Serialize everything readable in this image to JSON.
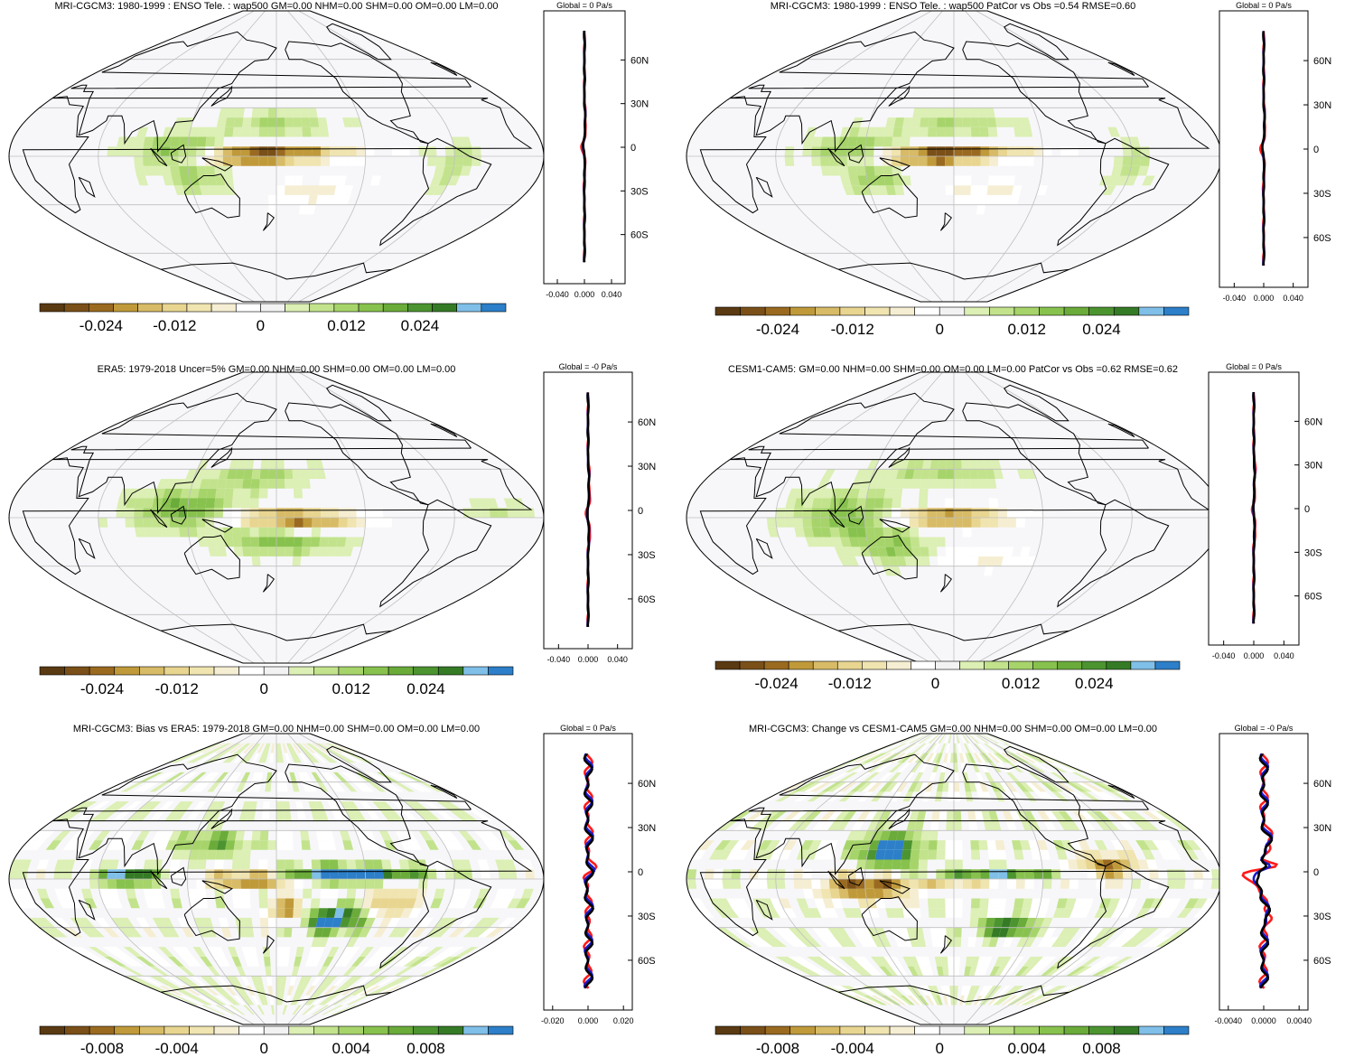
{
  "colors": {
    "ocean": "#f7f7fa",
    "grid": "#bfbfbf",
    "coast": "#000000",
    "zonal_model": "#ff1a1a",
    "zonal_ref": "#1a1acc",
    "zonal_diff": "#000000",
    "palette": [
      "#5a3a12",
      "#7a5018",
      "#9a6a20",
      "#c09a3a",
      "#d8bb66",
      "#e8d590",
      "#f0e4b0",
      "#f6eed2",
      "#ffffff",
      "#f2f2f2",
      "#dcefb4",
      "#c2e38c",
      "#a6d46a",
      "#88c24e",
      "#6aab3a",
      "#4c9430",
      "#357b26",
      "#7fbfe8",
      "#2c7fc8"
    ]
  },
  "chart_data": [
    {
      "type": "heatmap",
      "title": "MRI-CGCM3: 1980-1999 : ENSO Tele. : wap500 GM=0.00 NHM=0.00 SHM=0.00 OM=0.00 LM=0.00",
      "colorbar_ticks": [
        "-0.024",
        "-0.012",
        "0",
        "0.012",
        "0.024"
      ],
      "zonal_title": "Global = 0 Pa/s",
      "zonal_xticks": [
        "-0.040",
        "0.000",
        "0.040"
      ],
      "zonal_yticks": [
        "60N",
        "30N",
        "0",
        "30S",
        "60S"
      ],
      "zonal_xlim": [
        -0.06,
        0.06
      ],
      "variant": "model",
      "blobs": [
        {
          "lon": 160,
          "lat": 0,
          "rlon": 40,
          "rlat": 5,
          "v": -0.026
        },
        {
          "lon": 200,
          "lat": 2,
          "rlon": 40,
          "rlat": 4,
          "v": -0.012
        },
        {
          "lon": 115,
          "lat": 3,
          "rlon": 30,
          "rlat": 10,
          "v": 0.014
        },
        {
          "lon": 180,
          "lat": 20,
          "rlon": 40,
          "rlat": 8,
          "v": 0.008
        },
        {
          "lon": 205,
          "lat": -22,
          "rlon": 30,
          "rlat": 8,
          "v": -0.006
        },
        {
          "lon": 125,
          "lat": -15,
          "rlon": 20,
          "rlat": 8,
          "v": 0.009
        },
        {
          "lon": 300,
          "lat": -5,
          "rlon": 15,
          "rlat": 15,
          "v": 0.006
        }
      ]
    },
    {
      "type": "heatmap",
      "title": "MRI-CGCM3: 1980-1999 : ENSO Tele. : wap500 PatCor vs Obs =0.54 RMSE=0.60",
      "colorbar_ticks": [
        "-0.024",
        "-0.012",
        "0",
        "0.012",
        "0.024"
      ],
      "zonal_title": "Global = 0 Pa/s",
      "zonal_xticks": [
        "-0.040",
        "0.000",
        "0.040"
      ],
      "zonal_yticks": [
        "60N",
        "30N",
        "0",
        "30S",
        "60S"
      ],
      "zonal_xlim": [
        -0.06,
        0.06
      ],
      "variant": "model",
      "blobs": [
        {
          "lon": 160,
          "lat": 0,
          "rlon": 40,
          "rlat": 5,
          "v": -0.026
        },
        {
          "lon": 200,
          "lat": 2,
          "rlon": 40,
          "rlat": 4,
          "v": -0.012
        },
        {
          "lon": 115,
          "lat": 3,
          "rlon": 30,
          "rlat": 10,
          "v": 0.014
        },
        {
          "lon": 180,
          "lat": 20,
          "rlon": 40,
          "rlat": 8,
          "v": 0.008
        },
        {
          "lon": 205,
          "lat": -22,
          "rlon": 30,
          "rlat": 8,
          "v": -0.006
        },
        {
          "lon": 125,
          "lat": -15,
          "rlon": 20,
          "rlat": 8,
          "v": 0.009
        },
        {
          "lon": 300,
          "lat": -5,
          "rlon": 15,
          "rlat": 15,
          "v": 0.006
        }
      ]
    },
    {
      "type": "heatmap",
      "title": "ERA5: 1979-2018 Uncer=5% GM=0.00 NHM=0.00 SHM=0.00 OM=0.00 LM=0.00",
      "colorbar_ticks": [
        "-0.024",
        "-0.012",
        "0",
        "0.012",
        "0.024"
      ],
      "zonal_title": "Global = -0 Pa/s",
      "zonal_xticks": [
        "-0.040",
        "0.000",
        "0.040"
      ],
      "zonal_yticks": [
        "60N",
        "30N",
        "0",
        "30S",
        "60S"
      ],
      "zonal_xlim": [
        -0.06,
        0.06
      ],
      "variant": "obs",
      "blobs": [
        {
          "lon": 185,
          "lat": 0,
          "rlon": 45,
          "rlat": 5,
          "v": -0.022
        },
        {
          "lon": 120,
          "lat": 5,
          "rlon": 35,
          "rlat": 12,
          "v": 0.016
        },
        {
          "lon": 165,
          "lat": 25,
          "rlon": 35,
          "rlat": 8,
          "v": 0.009
        },
        {
          "lon": 185,
          "lat": -15,
          "rlon": 40,
          "rlat": 8,
          "v": 0.012
        },
        {
          "lon": 210,
          "lat": -5,
          "rlon": 30,
          "rlat": 4,
          "v": -0.008
        },
        {
          "lon": 330,
          "lat": 5,
          "rlon": 25,
          "rlat": 5,
          "v": 0.006
        }
      ]
    },
    {
      "type": "heatmap",
      "title": "CESM1-CAM5: GM=0.00 NHM=0.00 SHM=0.00 OM=0.00 LM=0.00 PatCor vs Obs =0.62 RMSE=0.62",
      "colorbar_ticks": [
        "-0.024",
        "-0.012",
        "0",
        "0.012",
        "0.024"
      ],
      "zonal_title": "Global = 0 Pa/s",
      "zonal_xticks": [
        "-0.040",
        "0.000",
        "0.040"
      ],
      "zonal_yticks": [
        "60N",
        "30N",
        "0",
        "30S",
        "60S"
      ],
      "zonal_xlim": [
        -0.06,
        0.06
      ],
      "variant": "model",
      "blobs": [
        {
          "lon": 175,
          "lat": 0,
          "rlon": 40,
          "rlat": 5,
          "v": -0.024
        },
        {
          "lon": 110,
          "lat": 0,
          "rlon": 35,
          "rlat": 15,
          "v": 0.014
        },
        {
          "lon": 170,
          "lat": 28,
          "rlon": 45,
          "rlat": 8,
          "v": 0.008
        },
        {
          "lon": 140,
          "lat": -20,
          "rlon": 25,
          "rlat": 10,
          "v": 0.01
        },
        {
          "lon": 200,
          "lat": -25,
          "rlon": 35,
          "rlat": 6,
          "v": -0.006
        }
      ]
    },
    {
      "type": "heatmap",
      "title": "MRI-CGCM3: Bias vs ERA5: 1979-2018 GM=0.00 NHM=0.00 SHM=0.00 OM=0.00 LM=0.00",
      "colorbar_ticks": [
        "-0.008",
        "-0.004",
        "0",
        "0.004",
        "0.008"
      ],
      "zonal_title": "Global = 0 Pa/s",
      "zonal_xticks": [
        "-0.020",
        "0.000",
        "0.020"
      ],
      "zonal_yticks": [
        "60N",
        "30N",
        "0",
        "30S",
        "60S"
      ],
      "zonal_xlim": [
        -0.025,
        0.025
      ],
      "variant": "diff",
      "blobs": [
        {
          "lon": 225,
          "lat": 3,
          "rlon": 50,
          "rlat": 5,
          "v": 0.011
        },
        {
          "lon": 80,
          "lat": 1,
          "rlon": 20,
          "rlat": 4,
          "v": 0.011
        },
        {
          "lon": 165,
          "lat": 0,
          "rlon": 30,
          "rlat": 5,
          "v": -0.01
        },
        {
          "lon": 220,
          "lat": -25,
          "rlon": 25,
          "rlat": 8,
          "v": 0.01
        },
        {
          "lon": 190,
          "lat": -20,
          "rlon": 15,
          "rlat": 8,
          "v": -0.007
        },
        {
          "lon": 135,
          "lat": 22,
          "rlon": 25,
          "rlat": 8,
          "v": 0.005
        },
        {
          "lon": 260,
          "lat": -15,
          "rlon": 15,
          "rlat": 10,
          "v": -0.006
        }
      ]
    },
    {
      "type": "heatmap",
      "title": "MRI-CGCM3: Change vs CESM1-CAM5 GM=0.00 NHM=0.00 SHM=0.00 OM=0.00 LM=0.00",
      "colorbar_ticks": [
        "-0.008",
        "-0.004",
        "0",
        "0.004",
        "0.008"
      ],
      "zonal_title": "Global = -0 Pa/s",
      "zonal_xticks": [
        "-0.0040",
        "0.0000",
        "0.0040"
      ],
      "zonal_yticks": [
        "60N",
        "30N",
        "0",
        "30S",
        "60S"
      ],
      "zonal_xlim": [
        -0.005,
        0.005
      ],
      "variant": "diff2",
      "blobs": [
        {
          "lon": 135,
          "lat": 18,
          "rlon": 20,
          "rlat": 10,
          "v": 0.011
        },
        {
          "lon": 200,
          "lat": 4,
          "rlon": 45,
          "rlat": 3,
          "v": 0.01
        },
        {
          "lon": 120,
          "lat": -5,
          "rlon": 30,
          "rlat": 8,
          "v": -0.008
        },
        {
          "lon": 220,
          "lat": -30,
          "rlon": 20,
          "rlat": 5,
          "v": 0.01
        },
        {
          "lon": 180,
          "lat": 0,
          "rlon": 40,
          "rlat": 4,
          "v": -0.006
        },
        {
          "lon": 285,
          "lat": 8,
          "rlon": 20,
          "rlat": 8,
          "v": -0.007
        }
      ]
    }
  ]
}
